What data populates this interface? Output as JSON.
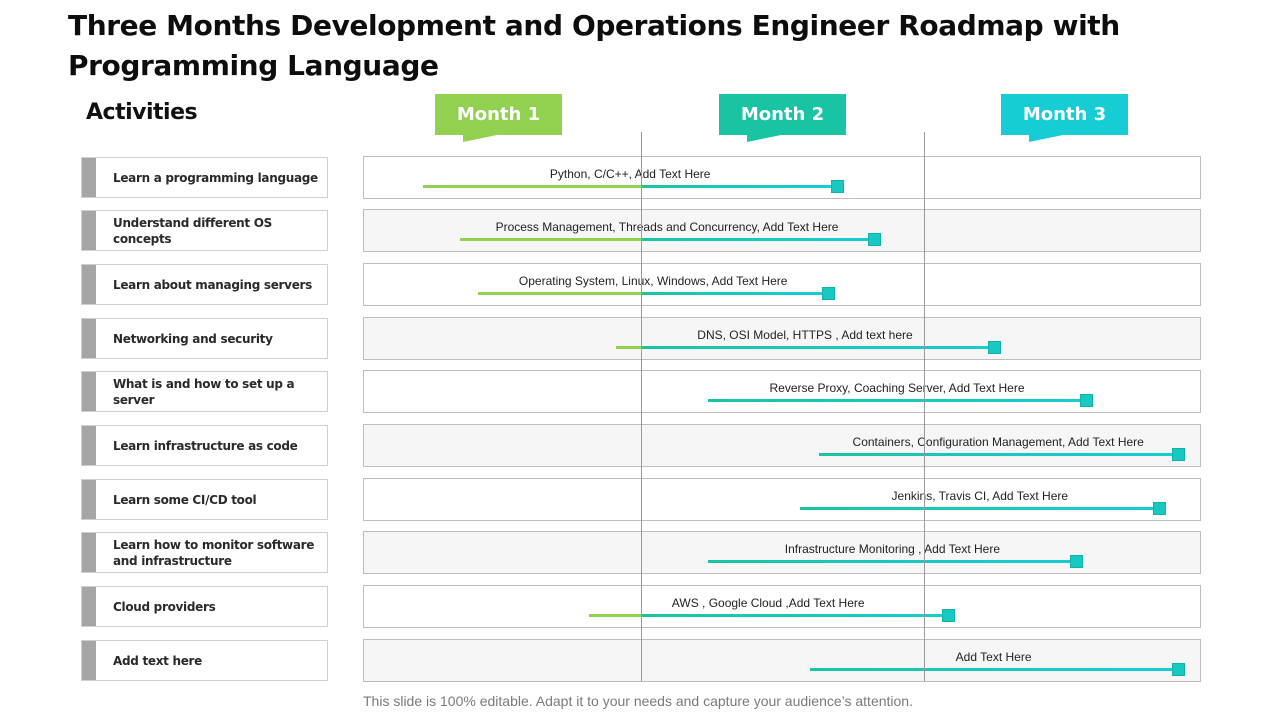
{
  "title": "Three Months Development and Operations Engineer Roadmap with Programming Language",
  "activities_heading": "Activities",
  "months": [
    {
      "label": "Month 1",
      "color": "#92d050"
    },
    {
      "label": "Month 2",
      "color": "#19c4a4"
    },
    {
      "label": "Month 3",
      "color": "#16cdd6"
    }
  ],
  "colors": {
    "green": "#92d050",
    "teal": "#19c4a4",
    "cyan": "#16cdd6",
    "activity_bar": "#a5a5a5"
  },
  "timeline": {
    "start_day": 0,
    "end_day": 90,
    "month_boundaries": [
      30,
      60
    ]
  },
  "activities": [
    {
      "label": "Learn a programming language",
      "bar_text": "Python, C/C++,  Add Text Here",
      "start_day": 6,
      "end_day": 51
    },
    {
      "label": "Understand different OS concepts",
      "bar_text": "Process Management,  Threads and Concurrency,  Add Text Here",
      "start_day": 10,
      "end_day": 55
    },
    {
      "label": "Learn about managing servers",
      "bar_text": "Operating System,  Linux, Windows, Add Text Here",
      "start_day": 12,
      "end_day": 50
    },
    {
      "label": "Networking and security",
      "bar_text": "DNS,  OSI Model,  HTTPS ,  Add text here",
      "start_day": 27,
      "end_day": 68
    },
    {
      "label": "What is and how to set up a server",
      "bar_text": "Reverse  Proxy, Coaching Server,  Add Text Here",
      "start_day": 37,
      "end_day": 78
    },
    {
      "label": "Learn infrastructure  as code",
      "bar_text": "Containers, Configuration Management,  Add Text Here",
      "start_day": 49,
      "end_day": 88
    },
    {
      "label": "Learn some CI/CD tool",
      "bar_text": "Jenkins, Travis CI,  Add Text Here",
      "start_day": 47,
      "end_day": 86
    },
    {
      "label": "Learn how to monitor software and infrastructure",
      "bar_text": "Infrastructure Monitoring ,  Add Text Here",
      "start_day": 37,
      "end_day": 77
    },
    {
      "label": "Cloud providers",
      "bar_text": "AWS  , Google Cloud ,Add Text Here",
      "start_day": 24,
      "end_day": 63
    },
    {
      "label": "Add text here",
      "bar_text": "Add Text Here",
      "start_day": 48,
      "end_day": 88
    }
  ],
  "footer": "This slide is 100% editable. Adapt it to your needs and capture your audience’s attention."
}
